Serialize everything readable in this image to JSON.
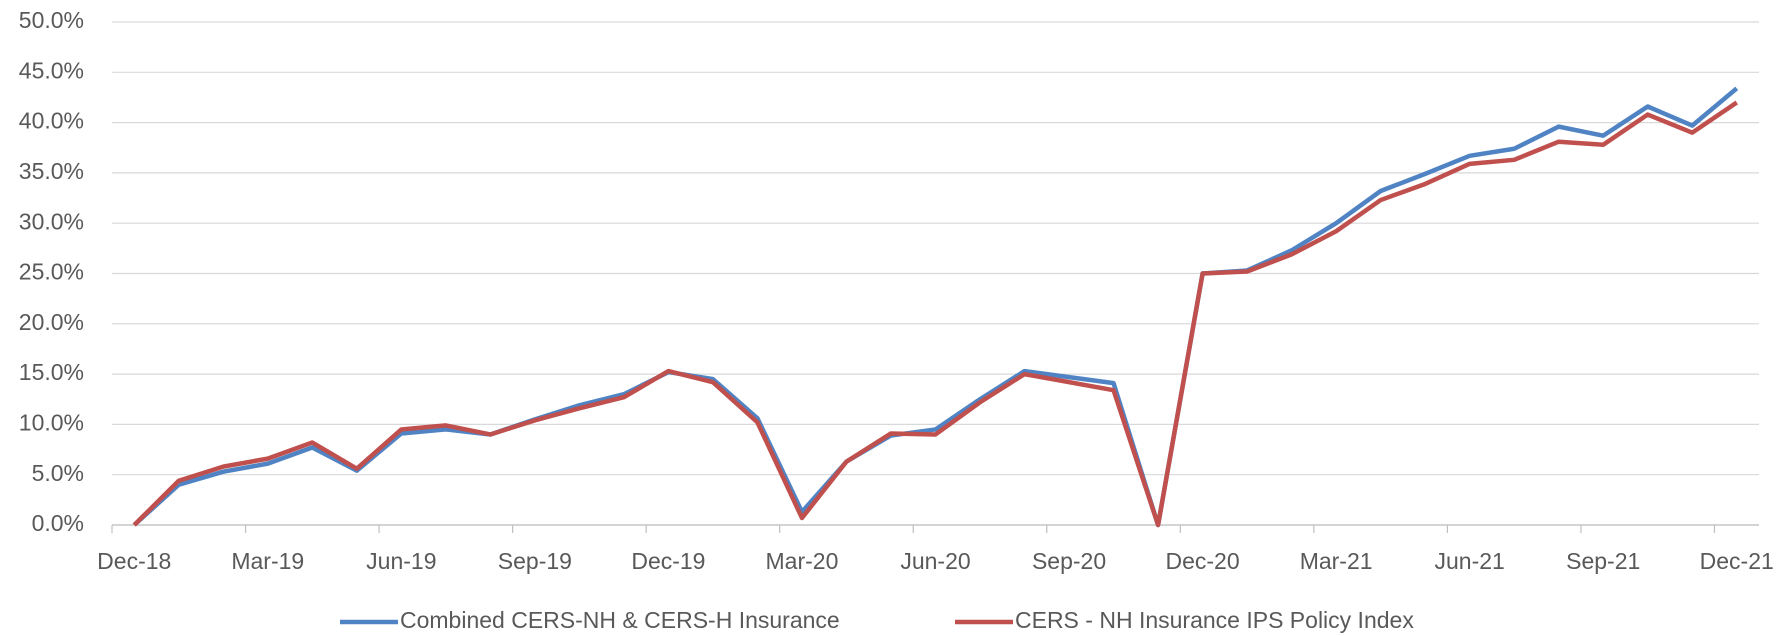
{
  "chart_data": {
    "type": "line",
    "categories": [
      "Dec-18",
      null,
      null,
      "Mar-19",
      null,
      null,
      "Jun-19",
      null,
      null,
      "Sep-19",
      null,
      null,
      "Dec-19",
      null,
      null,
      "Mar-20",
      null,
      null,
      "Jun-20",
      null,
      null,
      "Sep-20",
      null,
      null,
      "Dec-20",
      null,
      null,
      "Mar-21",
      null,
      null,
      "Jun-21",
      null,
      null,
      "Sep-21",
      null,
      null,
      "Dec-21"
    ],
    "series": [
      {
        "name": "Combined CERS-NH & CERS-H Insurance",
        "color": "#5083c3",
        "values": [
          0,
          4.0,
          5.3,
          6.1,
          7.7,
          5.4,
          9.1,
          9.5,
          9.0,
          10.5,
          11.9,
          13.0,
          15.2,
          14.5,
          10.6,
          1.3,
          6.3,
          8.9,
          9.5,
          12.5,
          15.3,
          14.7,
          14.1,
          0,
          25.0,
          25.3,
          27.3,
          30.0,
          33.2,
          34.9,
          36.7,
          37.4,
          39.6,
          38.7,
          41.6,
          39.7,
          43.4
        ]
      },
      {
        "name": "CERS - NH Insurance IPS Policy Index",
        "color": "#c0504d",
        "values": [
          0,
          4.4,
          5.8,
          6.6,
          8.2,
          5.6,
          9.5,
          9.9,
          9.0,
          10.4,
          11.6,
          12.7,
          15.3,
          14.2,
          10.2,
          0.7,
          6.3,
          9.1,
          9.0,
          12.2,
          15.0,
          14.2,
          13.4,
          0,
          25.0,
          25.2,
          26.9,
          29.2,
          32.3,
          33.9,
          35.9,
          36.3,
          38.1,
          37.8,
          40.8,
          39.0,
          42.0
        ]
      }
    ],
    "ylim": [
      0,
      50
    ],
    "yticks": [
      {
        "value": 0,
        "label": "0.0%"
      },
      {
        "value": 5,
        "label": "5.0%"
      },
      {
        "value": 10,
        "label": "10.0%"
      },
      {
        "value": 15,
        "label": "15.0%"
      },
      {
        "value": 20,
        "label": "20.0%"
      },
      {
        "value": 25,
        "label": "25.0%"
      },
      {
        "value": 30,
        "label": "30.0%"
      },
      {
        "value": 35,
        "label": "35.0%"
      },
      {
        "value": 40,
        "label": "40.0%"
      },
      {
        "value": 45,
        "label": "45.0%"
      },
      {
        "value": 50,
        "label": "50.0%"
      }
    ],
    "grid": true,
    "legend": "bottom"
  }
}
